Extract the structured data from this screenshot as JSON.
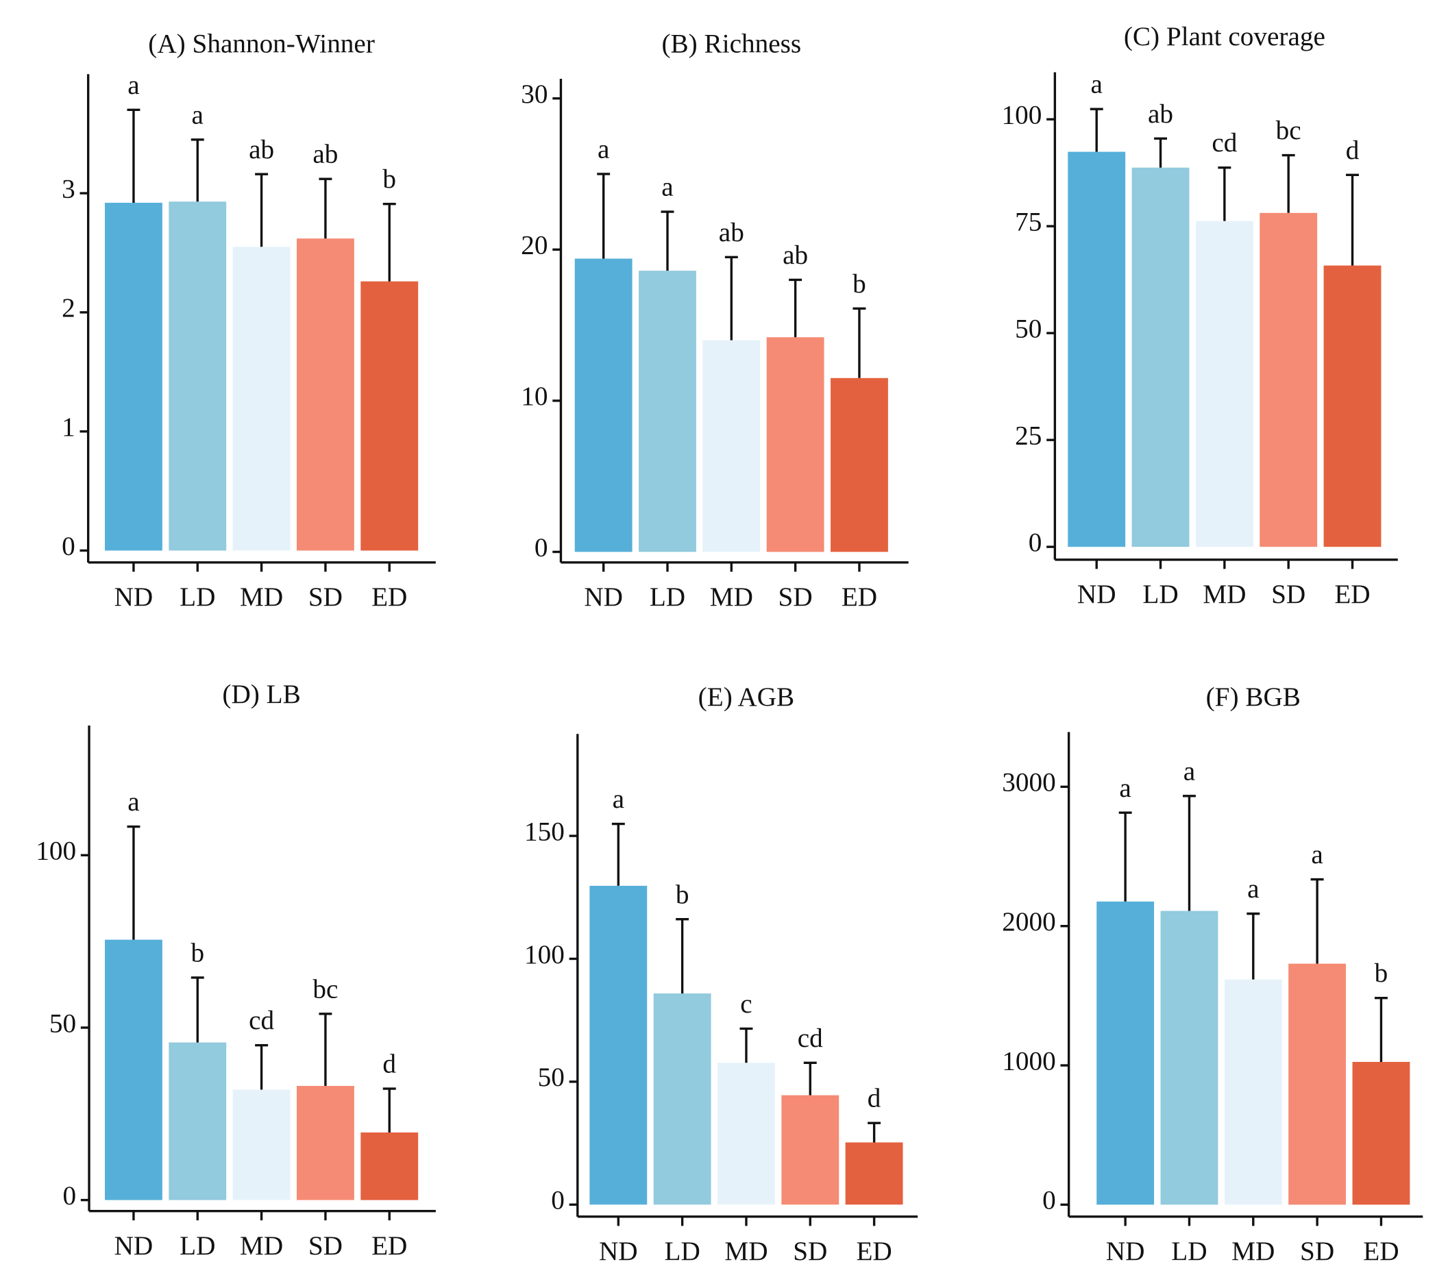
{
  "chart_data": [
    {
      "type": "bar",
      "title": "(A) Shannon-Winner",
      "categories": [
        "ND",
        "LD",
        "MD",
        "SD",
        "ED"
      ],
      "values": [
        2.92,
        2.93,
        2.55,
        2.62,
        2.26
      ],
      "errors": [
        0.78,
        0.52,
        0.61,
        0.5,
        0.65
      ],
      "significance": [
        "a",
        "a",
        "ab",
        "ab",
        "b"
      ],
      "colors": [
        "#56afd9",
        "#92cade",
        "#e6f2fa",
        "#f58b74",
        "#e4613f"
      ],
      "ylim": [
        -0.1,
        4.0
      ],
      "yticks": [
        0,
        1,
        2,
        3
      ]
    },
    {
      "type": "bar",
      "title": "(B) Richness",
      "categories": [
        "ND",
        "LD",
        "MD",
        "SD",
        "ED"
      ],
      "values": [
        19.4,
        18.6,
        14.0,
        14.2,
        11.5
      ],
      "errors": [
        5.6,
        3.9,
        5.5,
        3.8,
        4.6
      ],
      "significance": [
        "a",
        "a",
        "ab",
        "ab",
        "b"
      ],
      "colors": [
        "#56afd9",
        "#92cade",
        "#e6f2fa",
        "#f58b74",
        "#e4613f"
      ],
      "ylim": [
        -0.7,
        31.3
      ],
      "yticks": [
        0,
        10,
        20,
        30
      ]
    },
    {
      "type": "bar",
      "title": "(C) Plant coverage",
      "categories": [
        "ND",
        "LD",
        "MD",
        "SD",
        "ED"
      ],
      "values": [
        92.4,
        88.7,
        76.2,
        78.1,
        65.8
      ],
      "errors": [
        10.0,
        6.8,
        12.5,
        13.5,
        21.2
      ],
      "significance": [
        "a",
        "ab",
        "cd",
        "bc",
        "d"
      ],
      "colors": [
        "#56afd9",
        "#92cade",
        "#e6f2fa",
        "#f58b74",
        "#e4613f"
      ],
      "ylim": [
        -3,
        111
      ],
      "yticks": [
        0,
        25,
        50,
        75,
        100
      ]
    },
    {
      "type": "bar",
      "title": "(D) LB",
      "categories": [
        "ND",
        "LD",
        "MD",
        "SD",
        "ED"
      ],
      "values": [
        75.5,
        45.7,
        32.0,
        33.1,
        19.6
      ],
      "errors": [
        32.8,
        18.8,
        12.9,
        20.9,
        12.7
      ],
      "significance": [
        "a",
        "b",
        "cd",
        "bc",
        "d"
      ],
      "colors": [
        "#56afd9",
        "#92cade",
        "#e6f2fa",
        "#f58b74",
        "#e4613f"
      ],
      "ylim": [
        -3.2,
        137.6
      ],
      "yticks": [
        0,
        50,
        100
      ]
    },
    {
      "type": "bar",
      "title": "(E) AGB",
      "categories": [
        "ND",
        "LD",
        "MD",
        "SD",
        "ED"
      ],
      "values": [
        129.7,
        85.9,
        57.7,
        44.5,
        25.3
      ],
      "errors": [
        25.2,
        30.2,
        13.9,
        13.2,
        7.9
      ],
      "significance": [
        "a",
        "b",
        "c",
        "cd",
        "d"
      ],
      "colors": [
        "#56afd9",
        "#92cade",
        "#e6f2fa",
        "#f58b74",
        "#e4613f"
      ],
      "ylim": [
        -4.9,
        191.5
      ],
      "yticks": [
        0,
        50,
        100,
        150
      ]
    },
    {
      "type": "bar",
      "title": "(F) BGB",
      "categories": [
        "ND",
        "LD",
        "MD",
        "SD",
        "ED"
      ],
      "values": [
        2176,
        2109,
        1617,
        1730,
        1025
      ],
      "errors": [
        638,
        825,
        472,
        605,
        459
      ],
      "significance": [
        "a",
        "a",
        "a",
        "a",
        "b"
      ],
      "colors": [
        "#56afd9",
        "#92cade",
        "#e6f2fa",
        "#f58b74",
        "#e4613f"
      ],
      "ylim": [
        -86,
        3393
      ],
      "yticks": [
        0,
        1000,
        2000,
        3000
      ]
    }
  ]
}
